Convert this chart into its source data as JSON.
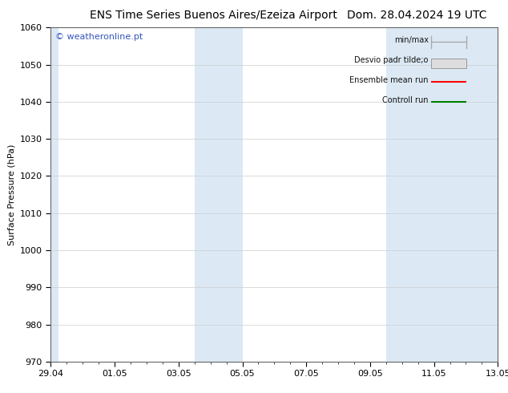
{
  "title_left": "ENS Time Series Buenos Aires/Ezeiza Airport",
  "title_right": "Dom. 28.04.2024 19 UTC",
  "ylabel": "Surface Pressure (hPa)",
  "ylim": [
    970,
    1060
  ],
  "yticks": [
    970,
    980,
    990,
    1000,
    1010,
    1020,
    1030,
    1040,
    1050,
    1060
  ],
  "xlim": [
    0,
    14
  ],
  "xtick_labels": [
    "29.04",
    "01.05",
    "03.05",
    "05.05",
    "07.05",
    "09.05",
    "11.05",
    "13.05"
  ],
  "xtick_positions": [
    0,
    2,
    4,
    6,
    8,
    10,
    12,
    14
  ],
  "watermark": "© weatheronline.pt",
  "legend_entries": [
    {
      "label": "min/max",
      "color": "#aaaaaa",
      "style": "errorbar"
    },
    {
      "label": "Desvio padr tilde;o",
      "color": "#cccccc",
      "style": "band"
    },
    {
      "label": "Ensemble mean run",
      "color": "red",
      "style": "line"
    },
    {
      "label": "Controll run",
      "color": "green",
      "style": "line"
    }
  ],
  "shaded_bands": [
    {
      "x_start": 0.0,
      "x_end": 0.25,
      "color": "#dce9f5"
    },
    {
      "x_start": 4.5,
      "x_end": 5.25,
      "color": "#dce9f5"
    },
    {
      "x_start": 5.25,
      "x_end": 6.0,
      "color": "#dce9f5"
    },
    {
      "x_start": 10.5,
      "x_end": 11.25,
      "color": "#dce9f5"
    },
    {
      "x_start": 11.25,
      "x_end": 14.0,
      "color": "#dce9f5"
    }
  ],
  "background_color": "#ffffff",
  "plot_bg_color": "#ffffff",
  "title_fontsize": 10,
  "tick_fontsize": 8,
  "ylabel_fontsize": 8,
  "watermark_color": "#3355bb"
}
